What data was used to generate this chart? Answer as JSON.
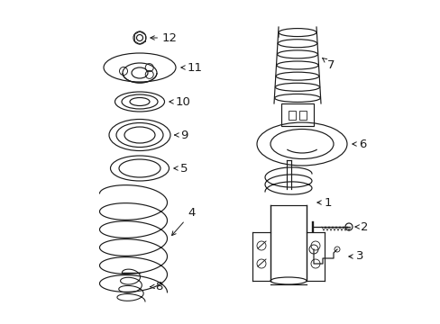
{
  "bg_color": "#ffffff",
  "line_color": "#1a1a1a",
  "fig_width": 4.89,
  "fig_height": 3.6,
  "dpi": 100,
  "label_fontsize": 9.5,
  "lw": 0.85
}
